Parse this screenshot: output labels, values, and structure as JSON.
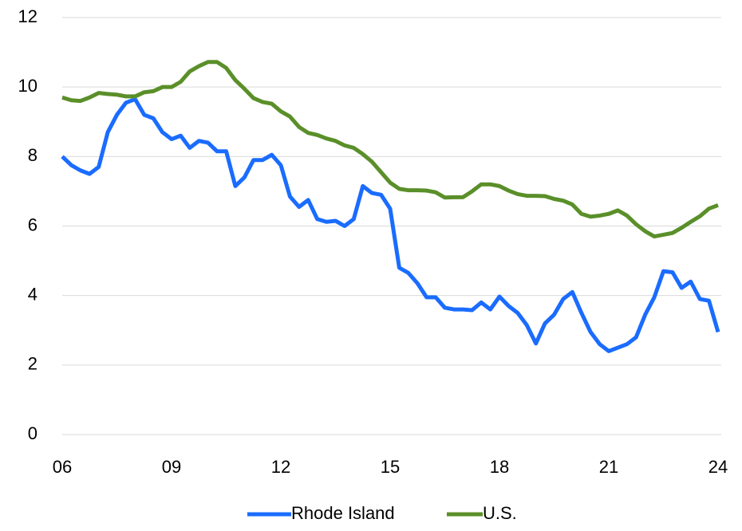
{
  "chart_data": {
    "type": "line",
    "x": [
      2006,
      2006.25,
      2006.5,
      2006.75,
      2007,
      2007.25,
      2007.5,
      2007.75,
      2008,
      2008.25,
      2008.5,
      2008.75,
      2009,
      2009.25,
      2009.5,
      2009.75,
      2010,
      2010.25,
      2010.5,
      2010.75,
      2011,
      2011.25,
      2011.5,
      2011.75,
      2012,
      2012.25,
      2012.5,
      2012.75,
      2013,
      2013.25,
      2013.5,
      2013.75,
      2014,
      2014.25,
      2014.5,
      2014.75,
      2015,
      2015.25,
      2015.5,
      2015.75,
      2016,
      2016.25,
      2016.5,
      2016.75,
      2017,
      2017.25,
      2017.5,
      2017.75,
      2018,
      2018.25,
      2018.5,
      2018.75,
      2019,
      2019.25,
      2019.5,
      2019.75,
      2020,
      2020.25,
      2020.5,
      2020.75,
      2021,
      2021.25,
      2021.5,
      2021.75,
      2022,
      2022.25,
      2022.5,
      2022.75,
      2023,
      2023.25,
      2023.5,
      2023.75,
      2024
    ],
    "series": [
      {
        "name": "Rhode Island",
        "color": "#1a6cff",
        "values": [
          8.0,
          7.75,
          7.6,
          7.5,
          7.7,
          8.7,
          9.2,
          9.55,
          9.65,
          9.2,
          9.1,
          8.7,
          8.5,
          8.6,
          8.25,
          8.45,
          8.4,
          8.15,
          8.15,
          7.15,
          7.4,
          7.9,
          7.9,
          8.05,
          7.75,
          6.85,
          6.55,
          6.75,
          6.2,
          6.12,
          6.15,
          6.0,
          6.2,
          7.15,
          6.95,
          6.9,
          6.5,
          4.8,
          4.65,
          4.35,
          3.95,
          3.95,
          3.65,
          3.6,
          3.6,
          3.58,
          3.8,
          3.6,
          3.97,
          3.7,
          3.5,
          3.15,
          2.62,
          3.2,
          3.45,
          3.9,
          4.1,
          3.5,
          2.95,
          2.6,
          2.4,
          2.5,
          2.6,
          2.8,
          3.45,
          3.95,
          4.7,
          4.67,
          4.22,
          4.4,
          3.9,
          3.85,
          2.95
        ]
      },
      {
        "name": "U.S.",
        "color": "#5a8f29",
        "values": [
          9.7,
          9.62,
          9.6,
          9.7,
          9.83,
          9.8,
          9.78,
          9.73,
          9.73,
          9.85,
          9.88,
          10.0,
          10.0,
          10.15,
          10.45,
          10.6,
          10.72,
          10.72,
          10.55,
          10.2,
          9.95,
          9.68,
          9.57,
          9.52,
          9.3,
          9.15,
          8.85,
          8.68,
          8.62,
          8.52,
          8.45,
          8.32,
          8.25,
          8.07,
          7.85,
          7.55,
          7.25,
          7.07,
          7.03,
          7.03,
          7.02,
          6.97,
          6.82,
          6.83,
          6.83,
          7.0,
          7.2,
          7.2,
          7.15,
          7.02,
          6.92,
          6.87,
          6.87,
          6.86,
          6.78,
          6.73,
          6.62,
          6.35,
          6.27,
          6.3,
          6.35,
          6.45,
          6.3,
          6.05,
          5.85,
          5.7,
          5.75,
          5.8,
          5.95,
          6.12,
          6.28,
          6.5,
          6.6
        ]
      }
    ],
    "xlim": [
      2006,
      2024
    ],
    "xticks": [
      {
        "value": 2006,
        "label": "06"
      },
      {
        "value": 2009,
        "label": "09"
      },
      {
        "value": 2012,
        "label": "12"
      },
      {
        "value": 2015,
        "label": "15"
      },
      {
        "value": 2018,
        "label": "18"
      },
      {
        "value": 2021,
        "label": "21"
      },
      {
        "value": 2024,
        "label": "24"
      }
    ],
    "ylim": [
      0,
      12
    ],
    "yticks": [
      0,
      2,
      4,
      6,
      8,
      10,
      12
    ],
    "grid": true,
    "legend": "bottom"
  }
}
